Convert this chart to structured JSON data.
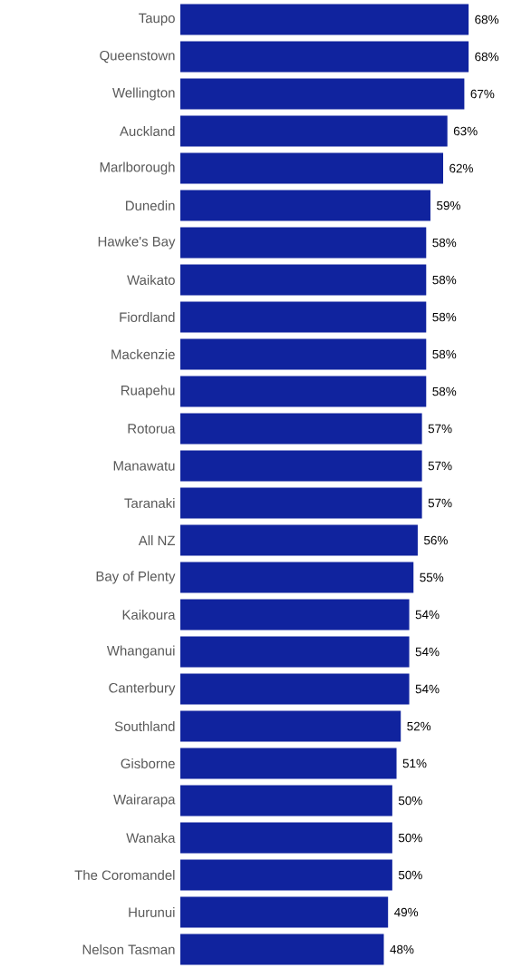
{
  "chart_data": {
    "type": "bar",
    "orientation": "horizontal",
    "categories": [
      "Taupo",
      "Queenstown",
      "Wellington",
      "Auckland",
      "Marlborough",
      "Dunedin",
      "Hawke's Bay",
      "Waikato",
      "Fiordland",
      "Mackenzie",
      "Ruapehu",
      "Rotorua",
      "Manawatu",
      "Taranaki",
      "All NZ",
      "Bay of Plenty",
      "Kaikoura",
      "Whanganui",
      "Canterbury",
      "Southland",
      "Gisborne",
      "Wairarapa",
      "Wanaka",
      "The Coromandel",
      "Hurunui",
      "Nelson Tasman"
    ],
    "values": [
      68,
      68,
      67,
      63,
      62,
      59,
      58,
      58,
      58,
      58,
      58,
      57,
      57,
      57,
      56,
      55,
      54,
      54,
      54,
      52,
      51,
      50,
      50,
      50,
      49,
      48
    ],
    "value_labels": [
      "68%",
      "68%",
      "67%",
      "63%",
      "62%",
      "59%",
      "58%",
      "58%",
      "58%",
      "58%",
      "58%",
      "57%",
      "57%",
      "57%",
      "56%",
      "55%",
      "54%",
      "54%",
      "54%",
      "52%",
      "51%",
      "50%",
      "50%",
      "50%",
      "49%",
      "48%"
    ],
    "color": "#10239e"
  }
}
